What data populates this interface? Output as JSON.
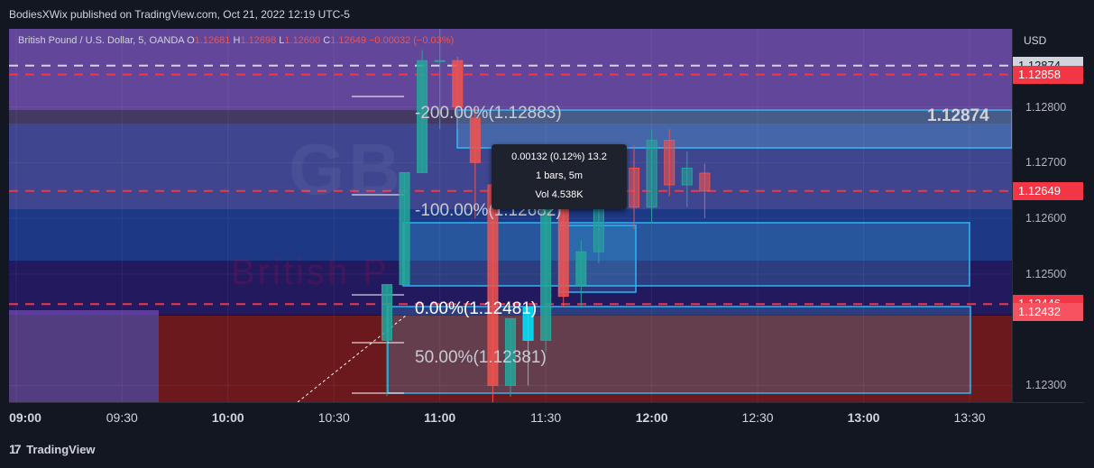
{
  "header": {
    "published": "BodiesXWix published on TradingView.com, Oct 21, 2022 12:19 UTC-5"
  },
  "legend": {
    "symbol": "British Pound / U.S. Dollar, 5, OANDA",
    "o_label": "O",
    "o": "1.12681",
    "h_label": "H",
    "h": "1.12698",
    "l_label": "L",
    "l": "1.12600",
    "c_label": "C",
    "c": "1.12649",
    "change": "−0.00032 (−0.03%)"
  },
  "watermark": {
    "ticker": "GB",
    "name": "British P"
  },
  "currency": "USD",
  "price_axis": {
    "ticks": [
      "1.12800",
      "1.12700",
      "1.12600",
      "1.12500",
      "1.12300"
    ],
    "tick_values": [
      1.128,
      1.127,
      1.126,
      1.125,
      1.123
    ],
    "badges": [
      {
        "label": "1.12874",
        "value": 1.12874,
        "bg": "#d1d4dc",
        "fg": "#131722"
      },
      {
        "label": "1.12858",
        "value": 1.12858,
        "bg": "#f23645",
        "fg": "#ffffff"
      },
      {
        "label": "1.12649",
        "value": 1.12649,
        "bg": "#f23645",
        "fg": "#ffffff"
      },
      {
        "label": "1.12446",
        "value": 1.12446,
        "bg": "#f23645",
        "fg": "#ffffff"
      },
      {
        "label": "1.12432",
        "value": 1.12432,
        "bg": "#f7525f",
        "fg": "#ffffff"
      }
    ]
  },
  "time_axis": {
    "ticks": [
      "09:00",
      "09:30",
      "10:00",
      "10:30",
      "11:00",
      "11:30",
      "12:00",
      "12:30",
      "13:00",
      "13:30"
    ],
    "bold": [
      "09:00",
      "10:00",
      "11:00",
      "12:00",
      "13:00"
    ]
  },
  "fib_labels": {
    "m200": "-200.00%(1.12883)",
    "m100": "-100.00%(1.12682)",
    "zero": "0.00%(1.12481)",
    "fifty": "50.00%(1.12381)"
  },
  "big_price": "1.12874",
  "tooltip": {
    "line1": "0.00132 (0.12%) 13.2",
    "line2": "1 bars, 5m",
    "line3": "Vol 4.538K"
  },
  "footer": {
    "logo": "17",
    "brand": "TradingView"
  },
  "colors": {
    "bull": "#26a69a",
    "bear": "#ef5350",
    "selected": "#00e5ff",
    "purple_zone": "#7e57c2",
    "blue_zone": "#2962ff",
    "red_zone": "#b71c1c"
  },
  "chart_data": {
    "type": "candlestick",
    "timeframe": "5",
    "y_range": [
      1.1227,
      1.1294
    ],
    "x_range": [
      "08:58",
      "13:42"
    ],
    "candles": [
      {
        "t": "10:45",
        "o": 1.12381,
        "h": 1.12481,
        "l": 1.12281,
        "c": 1.12481
      },
      {
        "t": "10:50",
        "o": 1.12481,
        "h": 1.12682,
        "l": 1.12481,
        "c": 1.12682
      },
      {
        "t": "10:55",
        "o": 1.12682,
        "h": 1.12902,
        "l": 1.12682,
        "c": 1.12883
      },
      {
        "t": "11:00",
        "o": 1.12883,
        "h": 1.1296,
        "l": 1.1276,
        "c": 1.12883
      },
      {
        "t": "11:05",
        "o": 1.12883,
        "h": 1.1289,
        "l": 1.1276,
        "c": 1.128
      },
      {
        "t": "11:10",
        "o": 1.1278,
        "h": 1.128,
        "l": 1.126,
        "c": 1.127
      },
      {
        "t": "11:15",
        "o": 1.1266,
        "h": 1.1268,
        "l": 1.1226,
        "c": 1.123
      },
      {
        "t": "11:20",
        "o": 1.123,
        "h": 1.1242,
        "l": 1.1228,
        "c": 1.1242
      },
      {
        "t": "11:25",
        "o": 1.12381,
        "h": 1.1244,
        "l": 1.123,
        "c": 1.1244
      },
      {
        "t": "11:30",
        "o": 1.12381,
        "h": 1.1262,
        "l": 1.1236,
        "c": 1.1262
      },
      {
        "t": "11:35",
        "o": 1.1262,
        "h": 1.1264,
        "l": 1.1244,
        "c": 1.1246
      },
      {
        "t": "11:40",
        "o": 1.1248,
        "h": 1.1256,
        "l": 1.1244,
        "c": 1.1254
      },
      {
        "t": "11:45",
        "o": 1.1254,
        "h": 1.1269,
        "l": 1.1252,
        "c": 1.1268
      },
      {
        "t": "11:50",
        "o": 1.1268,
        "h": 1.1272,
        "l": 1.1263,
        "c": 1.1269
      },
      {
        "t": "11:55",
        "o": 1.1269,
        "h": 1.1273,
        "l": 1.1258,
        "c": 1.1262
      },
      {
        "t": "12:00",
        "o": 1.1262,
        "h": 1.1276,
        "l": 1.1259,
        "c": 1.1274
      },
      {
        "t": "12:05",
        "o": 1.1274,
        "h": 1.1276,
        "l": 1.1264,
        "c": 1.1266
      },
      {
        "t": "12:10",
        "o": 1.1266,
        "h": 1.1272,
        "l": 1.1262,
        "c": 1.1269
      },
      {
        "t": "12:15",
        "o": 1.12681,
        "h": 1.12698,
        "l": 1.126,
        "c": 1.12649
      }
    ],
    "price_lines": [
      {
        "value": 1.12874,
        "style": "dashed",
        "color": "#d1d4dc"
      },
      {
        "value": 1.12858,
        "style": "dashed",
        "color": "#f23645"
      },
      {
        "value": 1.12649,
        "style": "dashed",
        "color": "#f23645"
      },
      {
        "value": 1.12446,
        "style": "dashed",
        "color": "#f23645"
      }
    ]
  }
}
